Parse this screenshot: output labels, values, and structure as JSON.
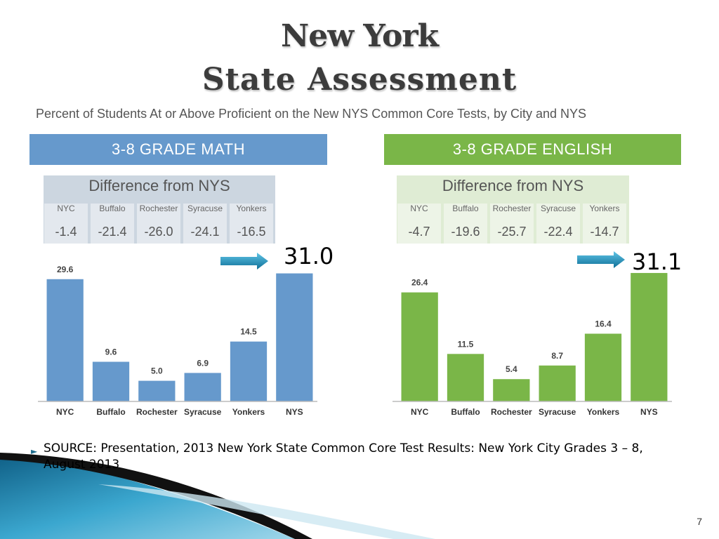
{
  "slide": {
    "title_line1": "New York",
    "title_line2": "State Assessment",
    "subtitle": "Percent of Students At or Above Proficient on the New NYS Common Core Tests, by City and NYS",
    "source": "SOURCE:  Presentation, 2013 New York State Common Core Test Results:  New York City Grades 3 – 8, August   2013",
    "page_number": "7"
  },
  "math": {
    "banner": "3-8 GRADE MATH",
    "diff_title": "Difference from NYS",
    "diff": [
      {
        "city": "NYC",
        "value": "-1.4"
      },
      {
        "city": "Buffalo",
        "value": "-21.4"
      },
      {
        "city": "Rochester",
        "value": "-26.0"
      },
      {
        "city": "Syracuse",
        "value": "-24.1"
      },
      {
        "city": "Yonkers",
        "value": "-16.5"
      }
    ],
    "nys_callout": "31.0"
  },
  "english": {
    "banner": "3-8 GRADE ENGLISH",
    "diff_title": "Difference from NYS",
    "diff": [
      {
        "city": "NYC",
        "value": "-4.7"
      },
      {
        "city": "Buffalo",
        "value": "-19.6"
      },
      {
        "city": "Rochester",
        "value": "-25.7"
      },
      {
        "city": "Syracuse",
        "value": "-22.4"
      },
      {
        "city": "Yonkers",
        "value": "-14.7"
      }
    ],
    "nys_callout": "31.1"
  },
  "colors": {
    "math": "#6699cc",
    "math_banner": "#6699cc",
    "math_diff_bg": "#ccd6e0",
    "english": "#7ab648",
    "english_banner": "#7ab648",
    "english_diff_bg": "#dfecd4",
    "arrow": "#1a8ab8"
  },
  "chart_data": [
    {
      "type": "bar",
      "title": "3-8 GRADE MATH",
      "categories": [
        "NYC",
        "Buffalo",
        "Rochester",
        "Syracuse",
        "Yonkers",
        "NYS"
      ],
      "values": [
        29.6,
        9.6,
        5.0,
        6.9,
        14.5,
        31.0
      ],
      "data_labels": [
        "29.6",
        "9.6",
        "5.0",
        "6.9",
        "14.5",
        ""
      ],
      "ylim": [
        0,
        35
      ],
      "grid": false
    },
    {
      "type": "bar",
      "title": "3-8 GRADE ENGLISH",
      "categories": [
        "NYC",
        "Buffalo",
        "Rochester",
        "Syracuse",
        "Yonkers",
        "NYS"
      ],
      "values": [
        26.4,
        11.5,
        5.4,
        8.7,
        16.4,
        31.1
      ],
      "data_labels": [
        "26.4",
        "11.5",
        "5.4",
        "8.7",
        "16.4",
        ""
      ],
      "ylim": [
        0,
        35
      ],
      "grid": false
    }
  ]
}
